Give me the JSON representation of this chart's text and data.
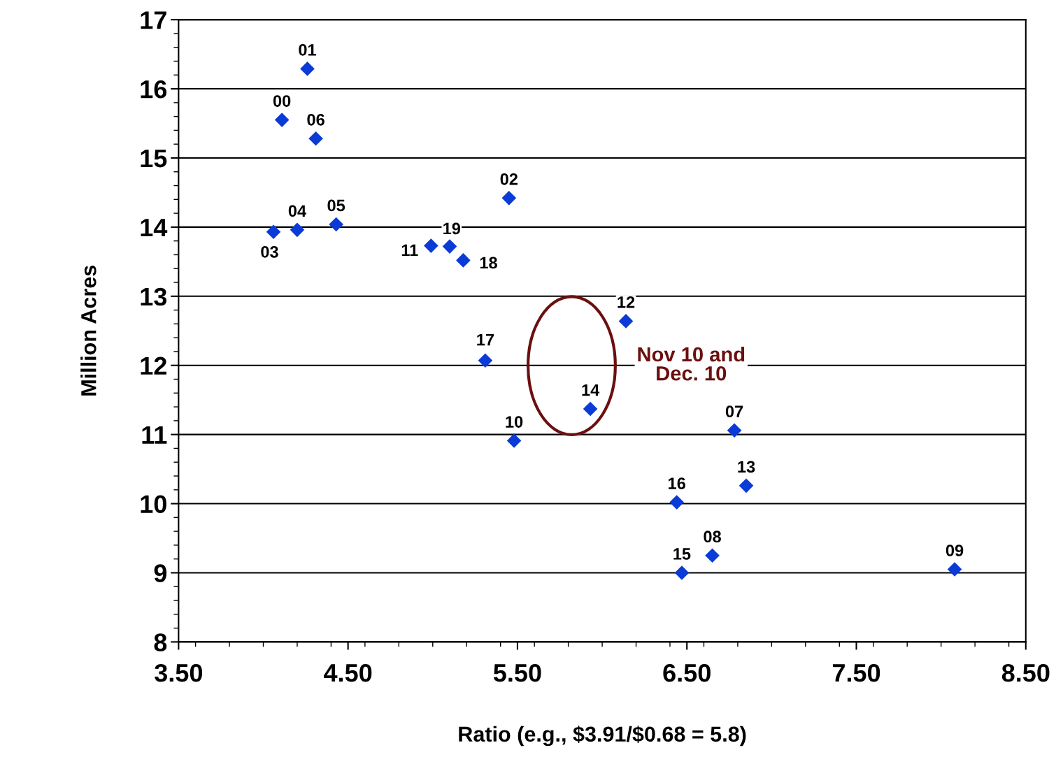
{
  "chart_data": {
    "type": "scatter",
    "xlabel": "Ratio (e.g., $3.91/$0.68 = 5.8)",
    "ylabel": "Million Acres",
    "xlim": [
      3.5,
      8.5
    ],
    "ylim": [
      8,
      17
    ],
    "xticks": [
      {
        "value": 3.5,
        "label": "3.50"
      },
      {
        "value": 4.5,
        "label": "4.50"
      },
      {
        "value": 5.5,
        "label": "5.50"
      },
      {
        "value": 6.5,
        "label": "6.50"
      },
      {
        "value": 7.5,
        "label": "7.50"
      },
      {
        "value": 8.5,
        "label": "8.50"
      }
    ],
    "yticks": [
      8,
      9,
      10,
      11,
      12,
      13,
      14,
      15,
      16,
      17
    ],
    "grid": "y",
    "marker": "diamond",
    "series": [
      {
        "color": "#0a3bd6",
        "x": [
          4.26,
          4.11,
          4.31,
          5.45,
          4.06,
          4.2,
          4.43,
          4.99,
          5.1,
          5.18,
          6.14,
          5.31,
          5.93,
          5.48,
          6.78,
          6.85,
          6.44,
          6.65,
          6.47,
          8.08
        ],
        "values": [
          16.29,
          15.55,
          15.28,
          14.42,
          13.93,
          13.96,
          14.04,
          13.73,
          13.72,
          13.52,
          12.64,
          12.07,
          11.37,
          10.91,
          11.06,
          10.26,
          10.02,
          9.25,
          9.0,
          9.05
        ]
      }
    ],
    "annotations": [
      {
        "text": "01",
        "x": 4.26,
        "y": 16.29
      },
      {
        "text": "00",
        "x": 4.11,
        "y": 15.55
      },
      {
        "text": "06",
        "x": 4.31,
        "y": 15.28
      },
      {
        "text": "02",
        "x": 5.45,
        "y": 14.42
      },
      {
        "text": "03",
        "x": 4.06,
        "y": 13.93
      },
      {
        "text": "04",
        "x": 4.2,
        "y": 13.96
      },
      {
        "text": "05",
        "x": 4.43,
        "y": 14.04
      },
      {
        "text": "11",
        "x": 4.99,
        "y": 13.73
      },
      {
        "text": "19",
        "x": 5.1,
        "y": 13.72
      },
      {
        "text": "18",
        "x": 5.18,
        "y": 13.52
      },
      {
        "text": "12",
        "x": 6.14,
        "y": 12.64
      },
      {
        "text": "17",
        "x": 5.31,
        "y": 12.07
      },
      {
        "text": "14",
        "x": 5.93,
        "y": 11.37
      },
      {
        "text": "10",
        "x": 5.48,
        "y": 10.91
      },
      {
        "text": "07",
        "x": 6.78,
        "y": 11.06
      },
      {
        "text": "13",
        "x": 6.85,
        "y": 10.26
      },
      {
        "text": "16",
        "x": 6.44,
        "y": 10.02
      },
      {
        "text": "08",
        "x": 6.65,
        "y": 9.25
      },
      {
        "text": "15",
        "x": 6.47,
        "y": 9.0
      },
      {
        "text": "09",
        "x": 8.08,
        "y": 9.05
      },
      "Nov 10 and\nDec. 10"
    ]
  }
}
